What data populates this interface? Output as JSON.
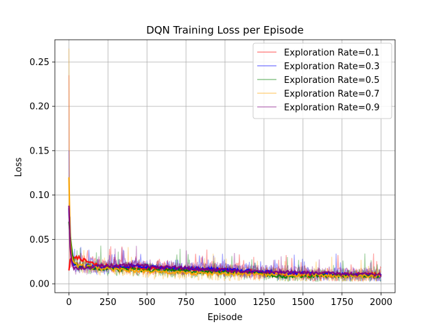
{
  "chart_data": {
    "type": "line",
    "title": "DQN Training Loss per Episode",
    "xlabel": "Episode",
    "ylabel": "Loss",
    "xlim": [
      -90,
      2090
    ],
    "ylim": [
      -0.01,
      0.275
    ],
    "x_ticks": [
      0,
      250,
      500,
      750,
      1000,
      1250,
      1500,
      1750,
      2000
    ],
    "x_tick_labels": [
      "0",
      "250",
      "500",
      "750",
      "1000",
      "1250",
      "1500",
      "1750",
      "2000"
    ],
    "y_ticks": [
      0.0,
      0.05,
      0.1,
      0.15,
      0.2,
      0.25
    ],
    "y_tick_labels": [
      "0.00",
      "0.05",
      "0.10",
      "0.15",
      "0.20",
      "0.25"
    ],
    "grid": true,
    "legend_position": "top-right",
    "series": [
      {
        "name": "Exploration Rate=0.1",
        "color": "#ff0000",
        "peak": 0.235,
        "smoothed_points": [
          [
            0,
            0.015
          ],
          [
            10,
            0.03
          ],
          [
            30,
            0.028
          ],
          [
            60,
            0.03
          ],
          [
            100,
            0.026
          ],
          [
            200,
            0.02
          ],
          [
            400,
            0.018
          ],
          [
            600,
            0.017
          ],
          [
            800,
            0.016
          ],
          [
            1000,
            0.015
          ],
          [
            1200,
            0.013
          ],
          [
            1400,
            0.011
          ],
          [
            1600,
            0.01
          ],
          [
            1800,
            0.01
          ],
          [
            2000,
            0.01
          ]
        ]
      },
      {
        "name": "Exploration Rate=0.3",
        "color": "#0000ff",
        "peak": 0.15,
        "smoothed_points": [
          [
            0,
            0.085
          ],
          [
            10,
            0.04
          ],
          [
            30,
            0.02
          ],
          [
            60,
            0.02
          ],
          [
            100,
            0.02
          ],
          [
            200,
            0.018
          ],
          [
            400,
            0.02
          ],
          [
            600,
            0.018
          ],
          [
            800,
            0.017
          ],
          [
            1000,
            0.016
          ],
          [
            1200,
            0.014
          ],
          [
            1400,
            0.012
          ],
          [
            1600,
            0.011
          ],
          [
            1800,
            0.01
          ],
          [
            2000,
            0.009
          ]
        ]
      },
      {
        "name": "Exploration Rate=0.5",
        "color": "#008000",
        "peak": 0.12,
        "smoothed_points": [
          [
            0,
            0.07
          ],
          [
            10,
            0.05
          ],
          [
            30,
            0.025
          ],
          [
            60,
            0.02
          ],
          [
            100,
            0.02
          ],
          [
            200,
            0.017
          ],
          [
            400,
            0.016
          ],
          [
            600,
            0.015
          ],
          [
            800,
            0.014
          ],
          [
            1000,
            0.013
          ],
          [
            1200,
            0.012
          ],
          [
            1400,
            0.008
          ],
          [
            1600,
            0.009
          ],
          [
            1800,
            0.009
          ],
          [
            2000,
            0.009
          ]
        ]
      },
      {
        "name": "Exploration Rate=0.7",
        "color": "#ffa500",
        "peak": 0.265,
        "smoothed_points": [
          [
            0,
            0.12
          ],
          [
            10,
            0.035
          ],
          [
            30,
            0.025
          ],
          [
            60,
            0.02
          ],
          [
            100,
            0.02
          ],
          [
            200,
            0.017
          ],
          [
            400,
            0.015
          ],
          [
            600,
            0.013
          ],
          [
            800,
            0.012
          ],
          [
            1000,
            0.011
          ],
          [
            1200,
            0.011
          ],
          [
            1400,
            0.01
          ],
          [
            1600,
            0.01
          ],
          [
            1800,
            0.009
          ],
          [
            2000,
            0.009
          ]
        ]
      },
      {
        "name": "Exploration Rate=0.9",
        "color": "#800080",
        "peak": 0.09,
        "smoothed_points": [
          [
            0,
            0.088
          ],
          [
            10,
            0.03
          ],
          [
            30,
            0.018
          ],
          [
            60,
            0.017
          ],
          [
            100,
            0.018
          ],
          [
            200,
            0.02
          ],
          [
            400,
            0.021
          ],
          [
            600,
            0.019
          ],
          [
            800,
            0.017
          ],
          [
            1000,
            0.015
          ],
          [
            1200,
            0.014
          ],
          [
            1400,
            0.013
          ],
          [
            1600,
            0.012
          ],
          [
            1800,
            0.011
          ],
          [
            2000,
            0.01
          ]
        ]
      }
    ]
  }
}
